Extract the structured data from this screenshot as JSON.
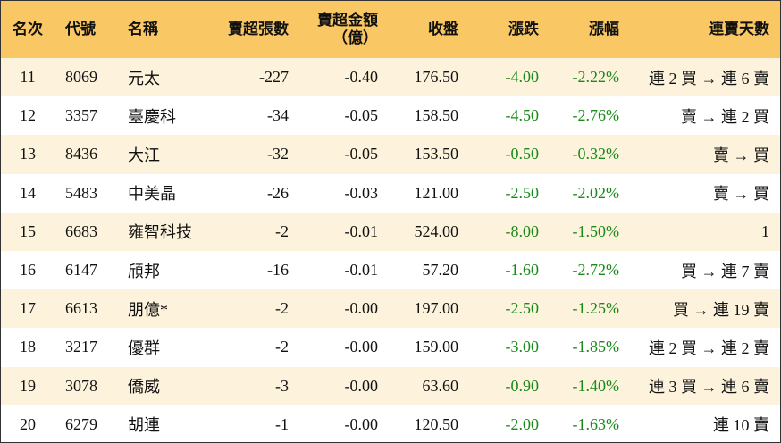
{
  "table": {
    "header": [
      "名次",
      "代號",
      "名稱",
      "賣超張數",
      "賣超金額\n（億）",
      "收盤",
      "漲跌",
      "漲幅",
      "連賣天數"
    ],
    "rows": [
      [
        "11",
        "8069",
        "元太",
        "-227",
        "-0.40",
        "176.50",
        "-4.00",
        "-2.22%",
        "連 2 買 → 連 6 賣"
      ],
      [
        "12",
        "3357",
        "臺慶科",
        "-34",
        "-0.05",
        "158.50",
        "-4.50",
        "-2.76%",
        "賣 → 連 2 買"
      ],
      [
        "13",
        "8436",
        "大江",
        "-32",
        "-0.05",
        "153.50",
        "-0.50",
        "-0.32%",
        "賣 → 買"
      ],
      [
        "14",
        "5483",
        "中美晶",
        "-26",
        "-0.03",
        "121.00",
        "-2.50",
        "-2.02%",
        "賣 → 買"
      ],
      [
        "15",
        "6683",
        "雍智科技",
        "-2",
        "-0.01",
        "524.00",
        "-8.00",
        "-1.50%",
        "1"
      ],
      [
        "16",
        "6147",
        "頎邦",
        "-16",
        "-0.01",
        "57.20",
        "-1.60",
        "-2.72%",
        "買 → 連 7 賣"
      ],
      [
        "17",
        "6613",
        "朋億*",
        "-2",
        "-0.00",
        "197.00",
        "-2.50",
        "-1.25%",
        "買 → 連 19 賣"
      ],
      [
        "18",
        "3217",
        "優群",
        "-2",
        "-0.00",
        "159.00",
        "-3.00",
        "-1.85%",
        "連 2 買 → 連 2 賣"
      ],
      [
        "19",
        "3078",
        "僑威",
        "-3",
        "-0.00",
        "63.60",
        "-0.90",
        "-1.40%",
        "連 3 買 → 連 6 賣"
      ],
      [
        "20",
        "6279",
        "胡連",
        "-1",
        "-0.00",
        "120.50",
        "-2.00",
        "-1.63%",
        "連 10 賣"
      ]
    ]
  }
}
